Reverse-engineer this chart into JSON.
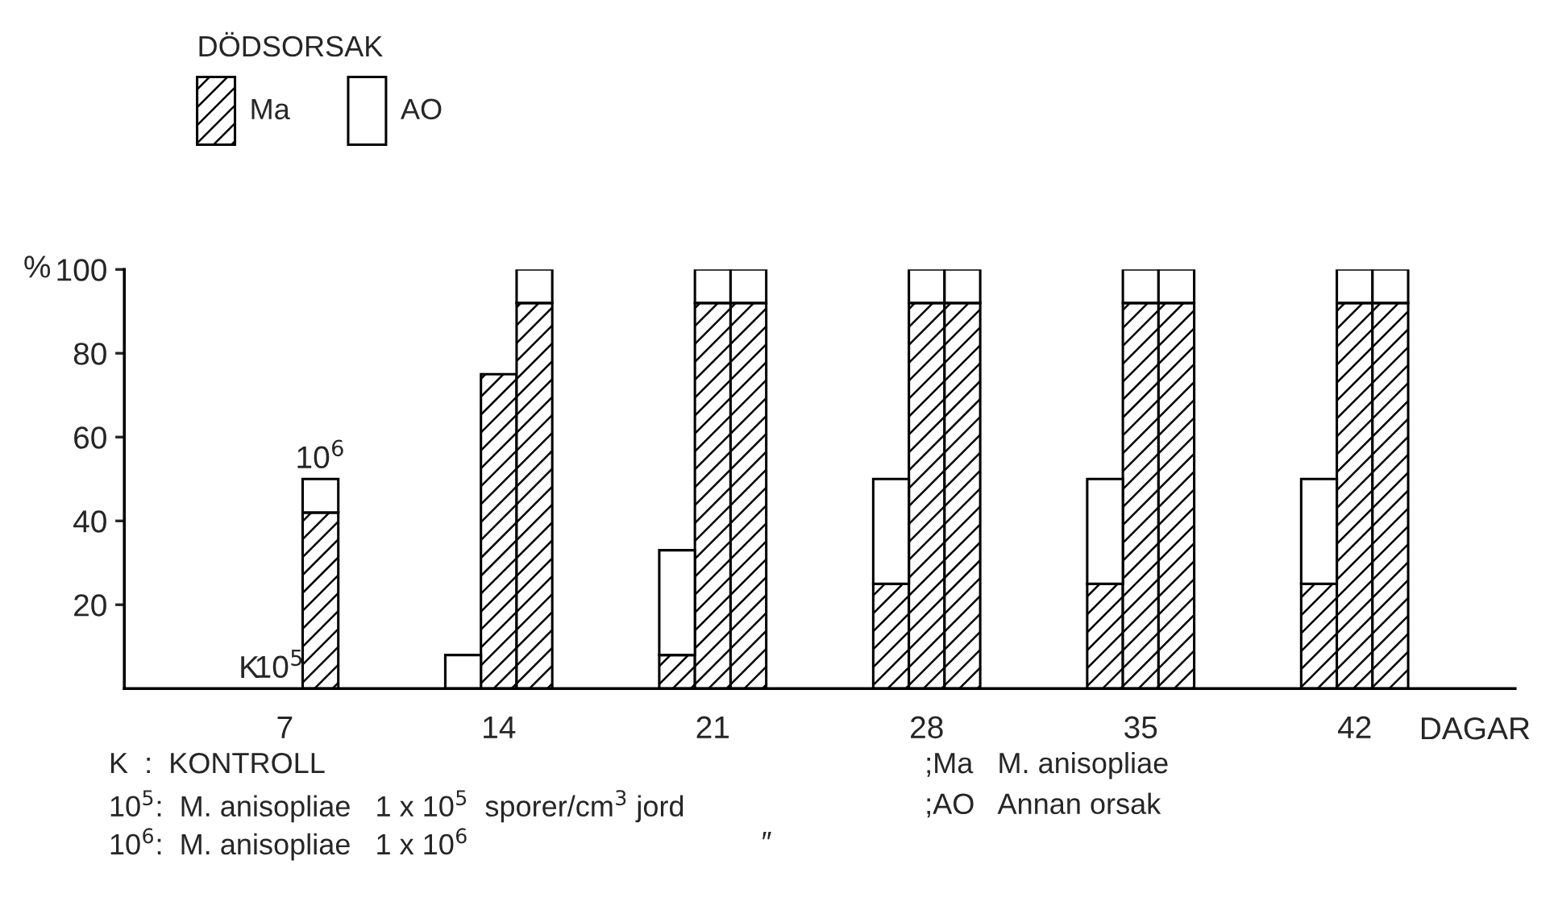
{
  "chart_data": {
    "type": "bar",
    "stacked": true,
    "legend_title": "DÖDSORSAK",
    "legend": "top left",
    "ylabel": "%",
    "xlabel": "DAGAR",
    "categories": [
      null,
      null,
      null,
      null,
      "7",
      null,
      null,
      null,
      null,
      null,
      "14",
      null,
      null,
      null,
      null,
      null,
      "21",
      null,
      null,
      null,
      null,
      null,
      "28",
      null,
      null,
      null,
      null,
      null,
      "35",
      null,
      null,
      null,
      null,
      null,
      "42",
      null,
      null,
      null,
      null
    ],
    "series": [
      {
        "name": "Ma",
        "color": "#000000",
        "values": [
          null,
          null,
          null,
          0,
          0,
          42,
          null,
          null,
          null,
          0,
          75,
          92,
          null,
          null,
          null,
          8,
          92,
          92,
          null,
          null,
          null,
          25,
          92,
          92,
          null,
          null,
          null,
          25,
          92,
          92,
          null,
          null,
          null,
          25,
          92,
          92,
          null,
          null,
          null
        ]
      },
      {
        "name": "AO",
        "color": "#ffffff",
        "values": [
          null,
          null,
          null,
          0,
          0,
          8,
          null,
          null,
          null,
          8,
          0,
          8,
          null,
          null,
          null,
          25,
          8,
          8,
          null,
          null,
          null,
          25,
          8,
          8,
          null,
          null,
          null,
          25,
          8,
          8,
          null,
          null,
          null,
          25,
          8,
          8,
          null,
          null,
          null
        ]
      }
    ],
    "ylim": [
      0,
      100
    ],
    "yticks": [
      {
        "value": 20,
        "label": "20"
      },
      {
        "value": 40,
        "label": "40"
      },
      {
        "value": 60,
        "label": "60"
      },
      {
        "value": 80,
        "label": "80"
      },
      {
        "value": 100,
        "label": "100"
      }
    ],
    "annotations": [
      "K",
      "10$^{5}$",
      "10$^{6}$",
      "K  :  KONTROLL",
      "10$^{5}$:  M. anisopliae   1 x 10$^{5}$  sporer/cm$^{3}$ jord",
      "10$^{6}$:  M. anisopliae   1 x 10$^{6}$",
      "″",
      ";Ma   M. anisopliae",
      ";AO   Annan orsak"
    ]
  }
}
